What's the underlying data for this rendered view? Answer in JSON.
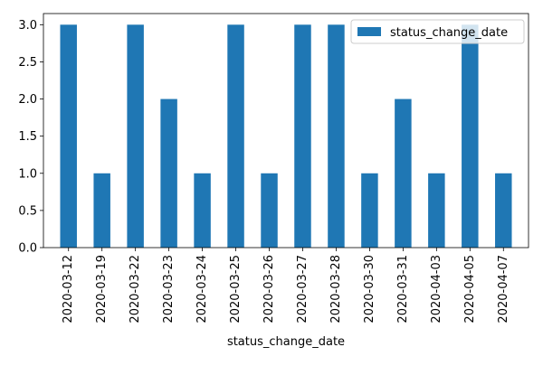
{
  "chart_data": {
    "type": "bar",
    "title": "",
    "xlabel": "status_change_date",
    "ylabel": "",
    "categories": [
      "2020-03-12",
      "2020-03-19",
      "2020-03-22",
      "2020-03-23",
      "2020-03-24",
      "2020-03-25",
      "2020-03-26",
      "2020-03-27",
      "2020-03-28",
      "2020-03-30",
      "2020-03-31",
      "2020-04-03",
      "2020-04-05",
      "2020-04-07"
    ],
    "series": [
      {
        "name": "status_change_date",
        "values": [
          3,
          1,
          3,
          2,
          1,
          3,
          1,
          3,
          3,
          1,
          2,
          1,
          3,
          1
        ]
      }
    ],
    "ylim": [
      0,
      3.15
    ],
    "yticks": [
      "0.0",
      "0.5",
      "1.0",
      "1.5",
      "2.0",
      "2.5",
      "3.0"
    ],
    "grid": false,
    "legend_position": "top-right",
    "colors": {
      "bar": "#1f77b4",
      "axis": "#000000",
      "legend_frame": "#cccccc"
    }
  }
}
